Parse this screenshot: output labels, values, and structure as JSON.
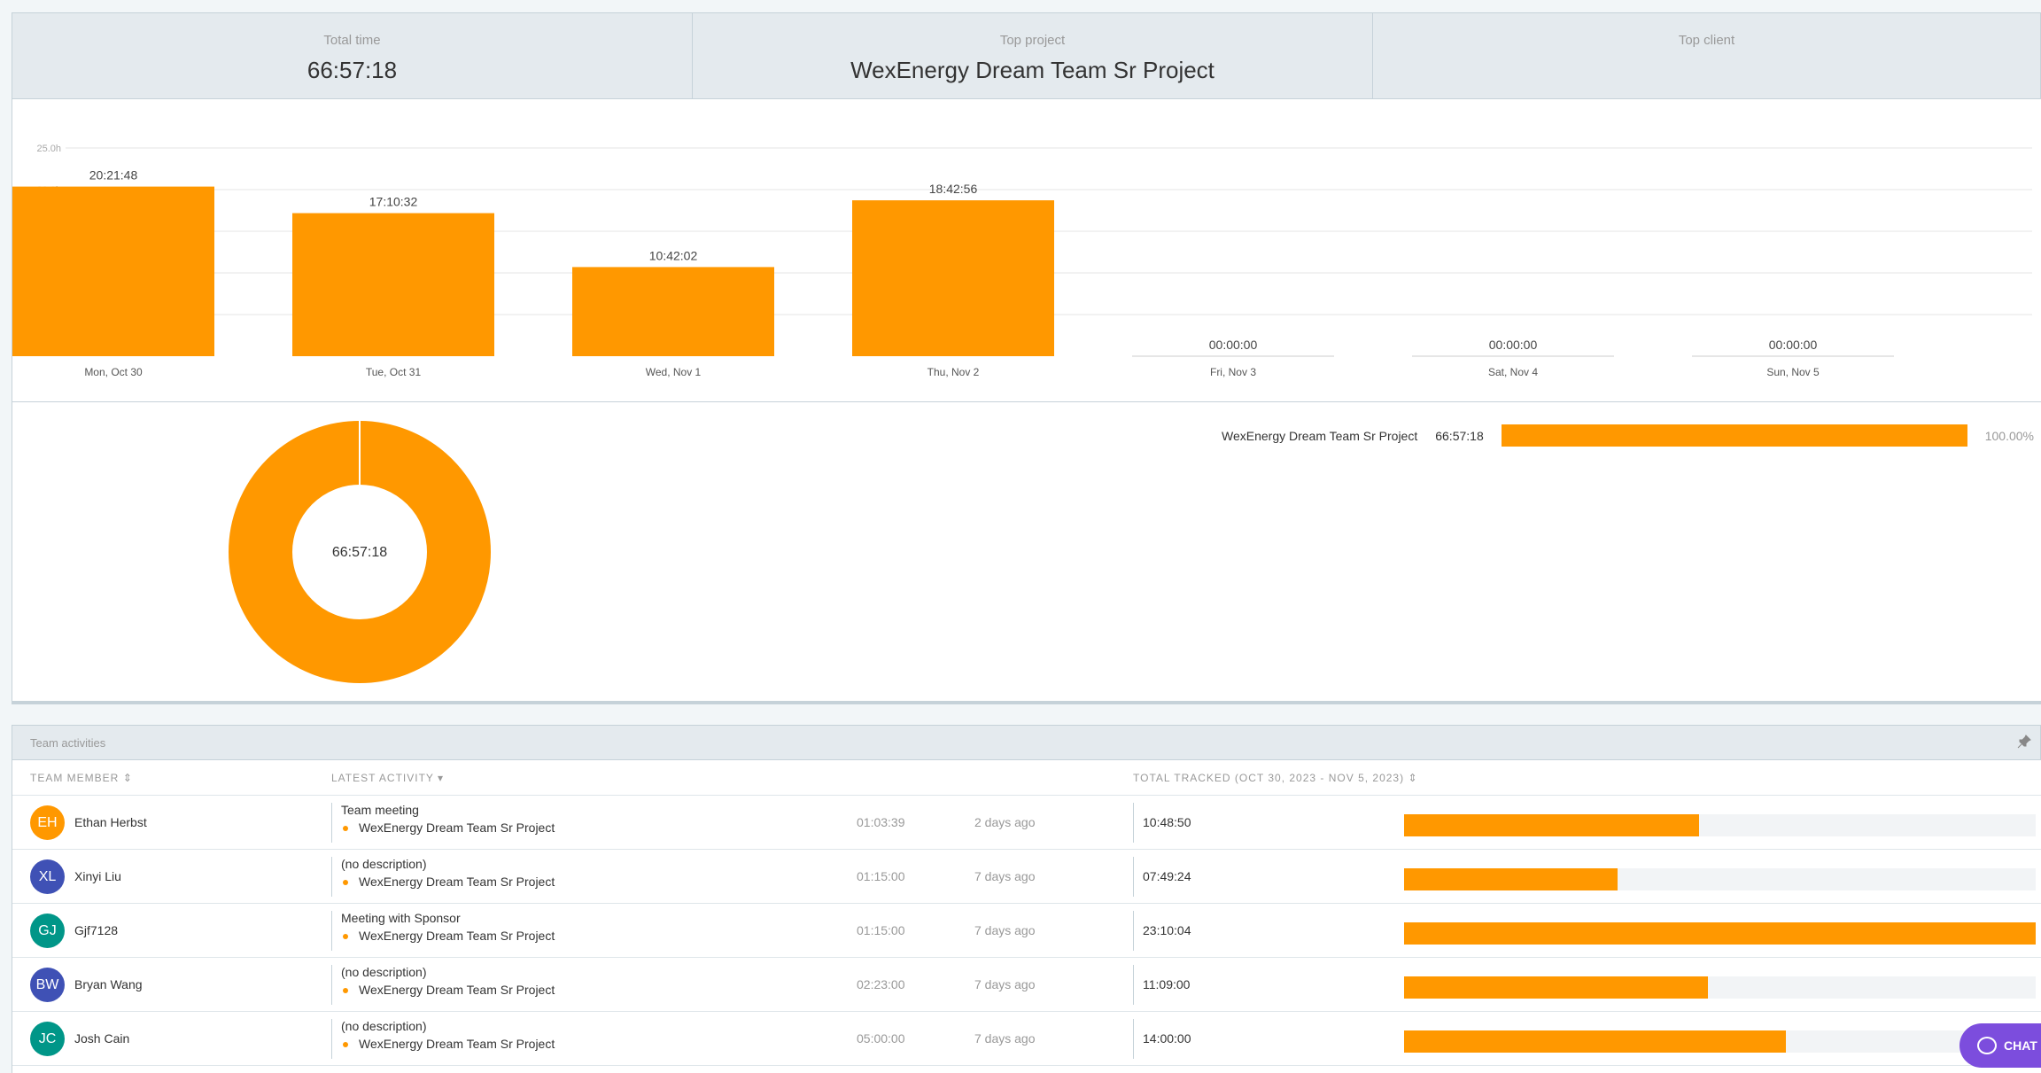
{
  "summary": {
    "total_time_label": "Total time",
    "total_time_value": "66:57:18",
    "top_project_label": "Top project",
    "top_project_value": "WexEnergy Dream Team Sr Project",
    "top_client_label": "Top client",
    "top_client_value": ""
  },
  "chart_data": {
    "type": "bar",
    "categories": [
      "Mon, Oct 30",
      "Tue, Oct 31",
      "Wed, Nov 1",
      "Thu, Nov 2",
      "Fri, Nov 3",
      "Sat, Nov 4",
      "Sun, Nov 5"
    ],
    "values": [
      20.363,
      17.176,
      10.701,
      18.716,
      0,
      0,
      0
    ],
    "data_labels": [
      "20:21:48",
      "17:10:32",
      "10:42:02",
      "18:42:56",
      "00:00:00",
      "00:00:00",
      "00:00:00"
    ],
    "y_ticks": [
      "5.0h",
      "10.0h",
      "15.0h",
      "20.0h",
      "25.0h"
    ],
    "ylim": [
      0,
      25
    ],
    "color": "#ff9800",
    "grid": true
  },
  "donut": {
    "center_label": "66:57:18",
    "color": "#ff9800"
  },
  "project_breakdown": [
    {
      "name": "WexEnergy Dream Team Sr Project",
      "time": "66:57:18",
      "percent": "100.00%",
      "fraction": 1.0
    }
  ],
  "team": {
    "title": "Team activities",
    "columns": {
      "member": "TEAM MEMBER",
      "latest": "LATEST ACTIVITY",
      "total": "TOTAL TRACKED (OCT 30, 2023 - NOV 5, 2023)"
    },
    "rows": [
      {
        "initials": "EH",
        "avatar_color": "#ff9800",
        "name": "Ethan Herbst",
        "description": "Team meeting",
        "project": "WexEnergy Dream Team Sr Project",
        "duration": "01:03:39",
        "ago": "2 days ago",
        "total": "10:48:50",
        "fraction": 0.467
      },
      {
        "initials": "XL",
        "avatar_color": "#3f51b5",
        "name": "Xinyi Liu",
        "description": "(no description)",
        "project": "WexEnergy Dream Team Sr Project",
        "duration": "01:15:00",
        "ago": "7 days ago",
        "total": "07:49:24",
        "fraction": 0.338
      },
      {
        "initials": "GJ",
        "avatar_color": "#009688",
        "name": "Gjf7128",
        "description": "Meeting with Sponsor",
        "project": "WexEnergy Dream Team Sr Project",
        "duration": "01:15:00",
        "ago": "7 days ago",
        "total": "23:10:04",
        "fraction": 1.0
      },
      {
        "initials": "BW",
        "avatar_color": "#3f51b5",
        "name": "Bryan Wang",
        "description": "(no description)",
        "project": "WexEnergy Dream Team Sr Project",
        "duration": "02:23:00",
        "ago": "7 days ago",
        "total": "11:09:00",
        "fraction": 0.481
      },
      {
        "initials": "JC",
        "avatar_color": "#009688",
        "name": "Josh Cain",
        "description": "(no description)",
        "project": "WexEnergy Dream Team Sr Project",
        "duration": "05:00:00",
        "ago": "7 days ago",
        "total": "14:00:00",
        "fraction": 0.604
      }
    ]
  },
  "chat": {
    "label": "CHAT"
  }
}
